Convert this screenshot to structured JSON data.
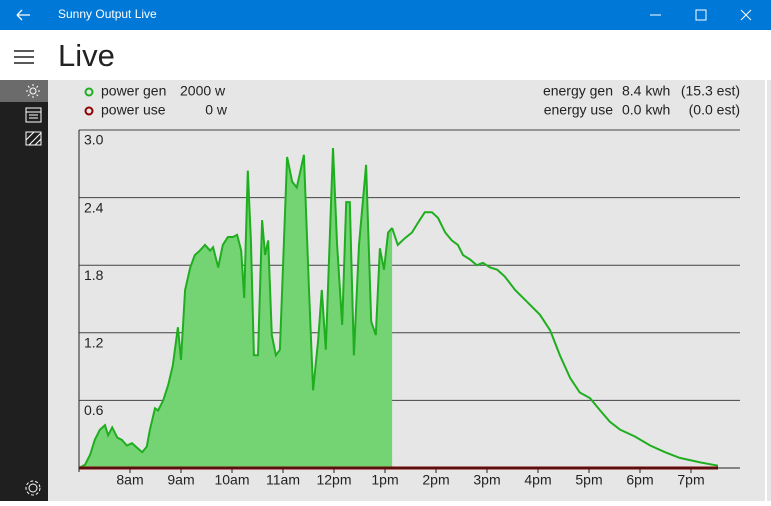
{
  "window": {
    "title": "Sunny Output Live"
  },
  "header": {
    "title": "Live"
  },
  "readings": {
    "power_gen": "2000 w",
    "power_use": "0 w",
    "energy_gen_label": "energy gen",
    "energy_gen": "8.4 kwh",
    "energy_gen_est": "(15.3 est)",
    "energy_use_label": "energy use",
    "energy_use": "0.0 kwh",
    "energy_use_est": "(0.0 est)"
  },
  "chart_data": {
    "type": "area",
    "xlim": [
      7,
      20
    ],
    "ylim": [
      0,
      3
    ],
    "yticks": [
      0.6,
      1.2,
      1.8,
      2.4,
      {
        "value": 3,
        "label": "3.0"
      }
    ],
    "xticks": [
      {
        "value": 8,
        "label": "8am"
      },
      {
        "value": 9,
        "label": "9am"
      },
      {
        "value": 10,
        "label": "10am"
      },
      {
        "value": 11,
        "label": "11am"
      },
      {
        "value": 12,
        "label": "12pm"
      },
      {
        "value": 13,
        "label": "1pm"
      },
      {
        "value": 14,
        "label": "2pm"
      },
      {
        "value": 15,
        "label": "3pm"
      },
      {
        "value": 16,
        "label": "4pm"
      },
      {
        "value": 17,
        "label": "5pm"
      },
      {
        "value": 18,
        "label": "6pm"
      },
      {
        "value": 19,
        "label": "7pm"
      }
    ],
    "grid": true,
    "series": [
      {
        "name": "power gen",
        "color": "#1fae1f",
        "fill_color": "#74d474",
        "x": [
          7.0,
          7.12,
          7.22,
          7.31,
          7.41,
          7.51,
          7.57,
          7.65,
          7.75,
          7.84,
          7.94,
          8.04,
          8.14,
          8.24,
          8.33,
          8.39,
          8.49,
          8.55,
          8.65,
          8.75,
          8.84,
          8.94,
          9.0,
          9.08,
          9.18,
          9.27,
          9.37,
          9.47,
          9.57,
          9.63,
          9.73,
          9.82,
          9.92,
          10.02,
          10.1,
          10.18,
          10.24,
          10.31,
          10.37,
          10.43,
          10.51,
          10.59,
          10.65,
          10.71,
          10.78,
          10.86,
          10.94,
          11.08,
          11.18,
          11.27,
          11.41,
          11.51,
          11.59,
          11.69,
          11.76,
          11.84,
          11.98,
          12.06,
          12.16,
          12.24,
          12.31,
          12.39,
          12.49,
          12.63,
          12.73,
          12.82,
          12.9,
          12.98,
          13.06,
          13.14
        ],
        "values": [
          0,
          0.03,
          0.12,
          0.25,
          0.34,
          0.38,
          0.29,
          0.36,
          0.27,
          0.25,
          0.2,
          0.22,
          0.18,
          0.14,
          0.19,
          0.34,
          0.53,
          0.51,
          0.6,
          0.74,
          0.91,
          1.25,
          0.96,
          1.58,
          1.78,
          1.89,
          1.93,
          1.98,
          1.93,
          1.96,
          1.78,
          1.98,
          2.05,
          2.05,
          2.07,
          1.93,
          1.51,
          2.64,
          2.02,
          1.0,
          1.0,
          2.2,
          1.89,
          2.02,
          1.18,
          1.0,
          1.05,
          2.76,
          2.54,
          2.49,
          2.78,
          1.58,
          0.69,
          1.14,
          1.58,
          1.05,
          2.84,
          1.98,
          1.27,
          2.36,
          2.36,
          1.0,
          1.98,
          2.69,
          1.3,
          1.18,
          1.95,
          1.76,
          2.09,
          2.13
        ]
      },
      {
        "color": "#1fae1f",
        "x": [
          13.14,
          13.25,
          13.39,
          13.53,
          13.65,
          13.78,
          13.92,
          14.04,
          14.18,
          14.31,
          14.43,
          14.53,
          14.67,
          14.8,
          14.92,
          15.06,
          15.2,
          15.35,
          15.55,
          15.75,
          16.04,
          16.24,
          16.43,
          16.63,
          16.82,
          17.02,
          17.22,
          17.41,
          17.61,
          17.9,
          18.2,
          18.49,
          18.78,
          19.18,
          19.53
        ],
        "values": [
          2.13,
          1.98,
          2.04,
          2.09,
          2.18,
          2.27,
          2.27,
          2.22,
          2.09,
          2.02,
          1.98,
          1.89,
          1.85,
          1.8,
          1.82,
          1.78,
          1.76,
          1.7,
          1.58,
          1.49,
          1.36,
          1.22,
          1.0,
          0.8,
          0.67,
          0.62,
          0.51,
          0.41,
          0.34,
          0.28,
          0.2,
          0.14,
          0.09,
          0.05,
          0.02
        ]
      },
      {
        "name": "power use",
        "color": "#8b0000",
        "x": [
          7,
          19.53
        ],
        "values": [
          0,
          0
        ]
      }
    ]
  }
}
